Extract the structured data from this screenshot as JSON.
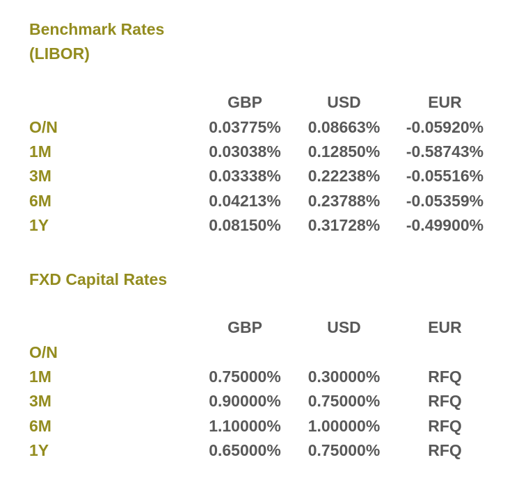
{
  "benchmark": {
    "title_line1": "Benchmark Rates",
    "title_line2": "(LIBOR)",
    "headers": [
      "GBP",
      "USD",
      "EUR"
    ],
    "rows": [
      {
        "tenor": "O/N",
        "gbp": "0.03775%",
        "usd": "0.08663%",
        "eur": "-0.05920%"
      },
      {
        "tenor": "1M",
        "gbp": "0.03038%",
        "usd": "0.12850%",
        "eur": "-0.58743%"
      },
      {
        "tenor": "3M",
        "gbp": "0.03338%",
        "usd": "0.22238%",
        "eur": "-0.05516%"
      },
      {
        "tenor": "6M",
        "gbp": "0.04213%",
        "usd": "0.23788%",
        "eur": "-0.05359%"
      },
      {
        "tenor": "1Y",
        "gbp": "0.08150%",
        "usd": "0.31728%",
        "eur": "-0.49900%"
      }
    ]
  },
  "fxd": {
    "title": "FXD Capital Rates",
    "headers": [
      "GBP",
      "USD",
      "EUR"
    ],
    "rows": [
      {
        "tenor": "O/N",
        "gbp": "",
        "usd": "",
        "eur": ""
      },
      {
        "tenor": "1M",
        "gbp": "0.75000%",
        "usd": "0.30000%",
        "eur": "RFQ"
      },
      {
        "tenor": "3M",
        "gbp": "0.90000%",
        "usd": "0.75000%",
        "eur": "RFQ"
      },
      {
        "tenor": "6M",
        "gbp": "1.10000%",
        "usd": "1.00000%",
        "eur": "RFQ"
      },
      {
        "tenor": "1Y",
        "gbp": "0.65000%",
        "usd": "0.75000%",
        "eur": "RFQ"
      }
    ]
  },
  "colors": {
    "label": "#938c1f",
    "value": "#595959",
    "background": "#ffffff"
  }
}
